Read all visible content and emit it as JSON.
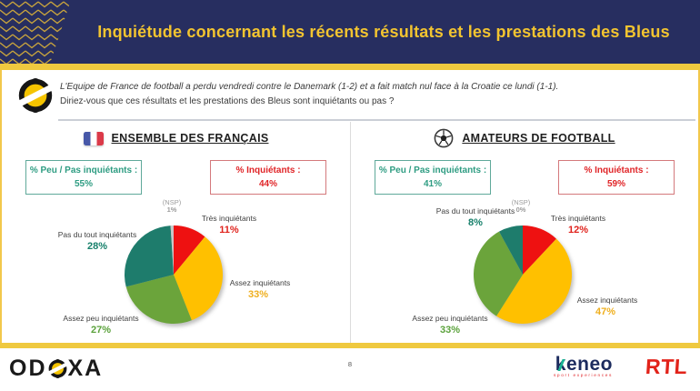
{
  "header": {
    "title": "Inquiétude concernant les récents résultats et les prestations des Bleus"
  },
  "intro": {
    "line1": "L'Equipe de France de football a perdu vendredi contre le Danemark (1-2) et a fait match nul face à la Croatie ce lundi (1-1).",
    "line2": "Diriez-vous que ces résultats et les prestations des Bleus sont inquiétants ou pas ?"
  },
  "chart_data": [
    {
      "type": "pie",
      "group": "ENSEMBLE DES FRANÇAIS",
      "slices": [
        {
          "label": "Très inquiétants",
          "value": 11,
          "display": "11%",
          "color": "#EE1111"
        },
        {
          "label": "Assez inquiétants",
          "value": 33,
          "display": "33%",
          "color": "#FFC000"
        },
        {
          "label": "Assez peu inquiétants",
          "value": 27,
          "display": "27%",
          "color": "#6BA43B"
        },
        {
          "label": "Pas du tout inquiétants",
          "value": 28,
          "display": "28%",
          "color": "#1E7C6C"
        },
        {
          "label": "(NSP)",
          "value": 1,
          "display": "1%",
          "color": "#C8C8C8"
        }
      ],
      "summary_low": {
        "label": "% Peu / Pas inquiétants :",
        "value": "55%"
      },
      "summary_high": {
        "label": "% Inquiétants :",
        "value": "44%"
      }
    },
    {
      "type": "pie",
      "group": "AMATEURS DE FOOTBALL",
      "slices": [
        {
          "label": "Très inquiétants",
          "value": 12,
          "display": "12%",
          "color": "#EE1111"
        },
        {
          "label": "Assez inquiétants",
          "value": 47,
          "display": "47%",
          "color": "#FFC000"
        },
        {
          "label": "Assez peu inquiétants",
          "value": 33,
          "display": "33%",
          "color": "#6BA43B"
        },
        {
          "label": "Pas du tout inquiétants",
          "value": 8,
          "display": "8%",
          "color": "#1E7C6C"
        },
        {
          "label": "(NSP)",
          "value": 0,
          "display": "0%",
          "color": "#C8C8C8"
        }
      ],
      "summary_low": {
        "label": "% Peu / Pas inquiétants :",
        "value": "41%"
      },
      "summary_high": {
        "label": "% Inquiétants :",
        "value": "59%"
      }
    }
  ],
  "footer": {
    "page_number": "8",
    "odoxa_pre": "OD",
    "odoxa_post": "XA",
    "keneo_name": "keneo",
    "keneo_tagline": "sport experiences",
    "rtl_name": "RTL"
  },
  "theme": {
    "navy": "#272E60",
    "gold": "#EFC93F",
    "title_gold": "#F2C430",
    "low_green": "#2E9C82",
    "high_red": "#E02528"
  }
}
